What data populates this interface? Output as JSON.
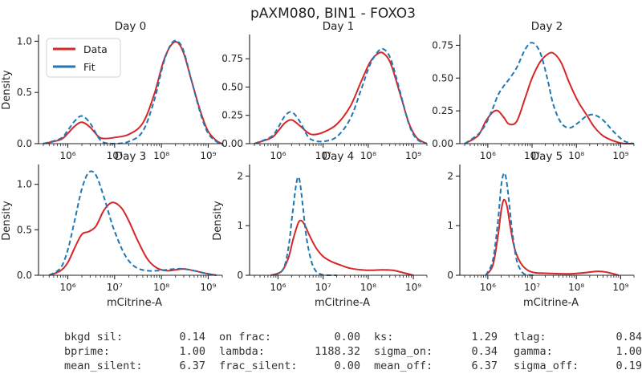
{
  "figure_title": "pAXM080, BIN1 - FOXO3",
  "colors": {
    "data": "#d62728",
    "fit": "#1f77b4"
  },
  "legend": [
    {
      "label": "Data",
      "color": "#d62728",
      "dash": false
    },
    {
      "label": "Fit",
      "color": "#1f77b4",
      "dash": true
    }
  ],
  "chart_data": [
    {
      "type": "line",
      "title": "Day 0",
      "ylabel": "Density",
      "xlabel": "",
      "xscale": "log",
      "xlim": [
        300000,
        2000000000
      ],
      "ylim": [
        0,
        1.05
      ],
      "yticks": [
        0.0,
        0.5,
        1.0
      ],
      "ytick_labels": [
        "0.0",
        "0.5",
        "1.0"
      ],
      "xticks": [
        1000000,
        10000000,
        100000000,
        1000000000
      ],
      "xtick_labels": [
        "10⁶",
        "10⁷",
        "10⁸",
        "10⁹"
      ],
      "legend_position": "upper-left",
      "series": [
        {
          "name": "Data",
          "dashed": false,
          "x": [
            300000,
            700000,
            1000000,
            1400000,
            2000000,
            3000000,
            4500000,
            6000000,
            10000000,
            20000000,
            40000000,
            70000000,
            110000000,
            160000000,
            220000000,
            300000000,
            450000000,
            700000000,
            1000000000,
            1500000000,
            2000000000
          ],
          "y": [
            0.0,
            0.04,
            0.1,
            0.17,
            0.21,
            0.16,
            0.07,
            0.05,
            0.06,
            0.09,
            0.2,
            0.48,
            0.8,
            0.96,
            0.99,
            0.88,
            0.6,
            0.3,
            0.12,
            0.03,
            0.0
          ]
        },
        {
          "name": "Fit",
          "dashed": true,
          "x": [
            300000,
            700000,
            1000000,
            1400000,
            2000000,
            3000000,
            4500000,
            6000000,
            10000000,
            20000000,
            40000000,
            70000000,
            110000000,
            160000000,
            220000000,
            300000000,
            450000000,
            700000000,
            1000000000,
            1500000000,
            2000000000
          ],
          "y": [
            0.0,
            0.05,
            0.13,
            0.22,
            0.27,
            0.2,
            0.06,
            0.01,
            0.0,
            0.02,
            0.12,
            0.42,
            0.78,
            0.97,
            1.0,
            0.9,
            0.6,
            0.28,
            0.1,
            0.02,
            0.0
          ]
        }
      ]
    },
    {
      "type": "line",
      "title": "Day 1",
      "ylabel": "",
      "xlabel": "",
      "xscale": "log",
      "xlim": [
        300000,
        2000000000
      ],
      "ylim": [
        0,
        0.95
      ],
      "yticks": [
        0.0,
        0.25,
        0.5,
        0.75
      ],
      "ytick_labels": [
        "0.00",
        "0.25",
        "0.50",
        "0.75"
      ],
      "xticks": [
        1000000,
        10000000,
        100000000,
        1000000000
      ],
      "xtick_labels": [
        "10⁶",
        "10⁷",
        "10⁸",
        "10⁹"
      ],
      "series": [
        {
          "name": "Data",
          "dashed": false,
          "x": [
            300000,
            700000,
            1000000,
            1400000,
            2000000,
            3000000,
            4500000,
            6000000,
            10000000,
            20000000,
            40000000,
            70000000,
            110000000,
            170000000,
            230000000,
            320000000,
            500000000,
            800000000,
            1200000000,
            2000000000
          ],
          "y": [
            0.0,
            0.05,
            0.11,
            0.18,
            0.21,
            0.16,
            0.1,
            0.08,
            0.1,
            0.17,
            0.33,
            0.55,
            0.72,
            0.8,
            0.79,
            0.7,
            0.45,
            0.18,
            0.05,
            0.0
          ]
        },
        {
          "name": "Fit",
          "dashed": true,
          "x": [
            300000,
            700000,
            1000000,
            1400000,
            2000000,
            3000000,
            4500000,
            6000000,
            10000000,
            20000000,
            40000000,
            70000000,
            110000000,
            170000000,
            230000000,
            320000000,
            500000000,
            800000000,
            1200000000,
            2000000000
          ],
          "y": [
            0.0,
            0.06,
            0.14,
            0.24,
            0.28,
            0.2,
            0.07,
            0.03,
            0.02,
            0.06,
            0.22,
            0.48,
            0.7,
            0.82,
            0.83,
            0.74,
            0.47,
            0.17,
            0.04,
            0.0
          ]
        }
      ]
    },
    {
      "type": "line",
      "title": "Day 2",
      "ylabel": "",
      "xlabel": "",
      "xscale": "log",
      "xlim": [
        300000,
        2000000000
      ],
      "ylim": [
        0,
        0.82
      ],
      "yticks": [
        0.0,
        0.25,
        0.5,
        0.75
      ],
      "ytick_labels": [
        "0.00",
        "0.25",
        "0.50",
        "0.75"
      ],
      "xticks": [
        1000000,
        10000000,
        100000000,
        1000000000
      ],
      "xtick_labels": [
        "10⁶",
        "10⁷",
        "10⁸",
        "10⁹"
      ],
      "series": [
        {
          "name": "Data",
          "dashed": false,
          "x": [
            300000,
            600000,
            900000,
            1300000,
            1700000,
            2300000,
            3000000,
            4500000,
            7000000,
            10000000,
            15000000,
            22000000,
            30000000,
            45000000,
            70000000,
            110000000,
            170000000,
            250000000,
            400000000,
            700000000,
            1200000000,
            2000000000
          ],
          "y": [
            0.0,
            0.06,
            0.17,
            0.24,
            0.25,
            0.2,
            0.15,
            0.17,
            0.35,
            0.5,
            0.62,
            0.68,
            0.69,
            0.62,
            0.46,
            0.32,
            0.22,
            0.13,
            0.06,
            0.02,
            0.0,
            0.0
          ]
        },
        {
          "name": "Fit",
          "dashed": true,
          "x": [
            300000,
            600000,
            900000,
            1300000,
            1700000,
            2300000,
            3000000,
            4500000,
            7000000,
            10000000,
            15000000,
            22000000,
            30000000,
            45000000,
            70000000,
            110000000,
            170000000,
            250000000,
            400000000,
            700000000,
            1200000000,
            2000000000
          ],
          "y": [
            0.0,
            0.07,
            0.15,
            0.27,
            0.37,
            0.44,
            0.49,
            0.58,
            0.72,
            0.77,
            0.7,
            0.5,
            0.3,
            0.16,
            0.12,
            0.16,
            0.21,
            0.22,
            0.18,
            0.09,
            0.02,
            0.0
          ]
        }
      ]
    },
    {
      "type": "line",
      "title": "Day 3",
      "ylabel": "Density",
      "xlabel": "mCitrine-A",
      "xscale": "log",
      "xlim": [
        300000,
        2000000000
      ],
      "ylim": [
        0,
        1.2
      ],
      "yticks": [
        0.0,
        0.5,
        1.0
      ],
      "ytick_labels": [
        "0.0",
        "0.5",
        "1.0"
      ],
      "xticks": [
        1000000,
        10000000,
        100000000,
        1000000000
      ],
      "xtick_labels": [
        "10⁶",
        "10⁷",
        "10⁸",
        "10⁹"
      ],
      "series": [
        {
          "name": "Data",
          "dashed": false,
          "x": [
            400000,
            700000,
            1000000,
            1400000,
            2000000,
            2800000,
            4000000,
            6000000,
            9000000,
            14000000,
            20000000,
            30000000,
            50000000,
            80000000,
            130000000,
            200000000,
            300000000,
            500000000,
            900000000,
            1500000000
          ],
          "y": [
            0.0,
            0.05,
            0.14,
            0.3,
            0.45,
            0.48,
            0.54,
            0.72,
            0.8,
            0.74,
            0.6,
            0.4,
            0.18,
            0.08,
            0.05,
            0.06,
            0.07,
            0.05,
            0.02,
            0.0
          ]
        },
        {
          "name": "Fit",
          "dashed": true,
          "x": [
            400000,
            700000,
            1000000,
            1400000,
            2000000,
            2800000,
            4000000,
            6000000,
            9000000,
            14000000,
            20000000,
            30000000,
            50000000,
            80000000,
            130000000,
            200000000,
            300000000,
            500000000,
            900000000,
            1500000000
          ],
          "y": [
            0.0,
            0.08,
            0.28,
            0.6,
            0.95,
            1.13,
            1.1,
            0.85,
            0.55,
            0.3,
            0.16,
            0.08,
            0.05,
            0.05,
            0.06,
            0.07,
            0.07,
            0.05,
            0.02,
            0.0
          ]
        }
      ]
    },
    {
      "type": "line",
      "title": "Day 4",
      "ylabel": "Density",
      "xlabel": "mCitrine-A",
      "xscale": "log",
      "xlim": [
        300000,
        2000000000
      ],
      "ylim": [
        0,
        2.2
      ],
      "yticks": [
        0,
        1,
        2
      ],
      "ytick_labels": [
        "0",
        "1",
        "2"
      ],
      "xticks": [
        1000000,
        10000000,
        100000000,
        1000000000
      ],
      "xtick_labels": [
        "10⁶",
        "10⁷",
        "10⁸",
        "10⁹"
      ],
      "series": [
        {
          "name": "Data",
          "dashed": false,
          "x": [
            700000,
            1200000,
            1700000,
            2200000,
            2800000,
            3300000,
            4000000,
            5000000,
            7000000,
            10000000,
            15000000,
            25000000,
            40000000,
            70000000,
            120000000,
            200000000,
            350000000,
            600000000,
            1000000000
          ],
          "y": [
            0.0,
            0.08,
            0.35,
            0.75,
            1.05,
            1.1,
            1.0,
            0.8,
            0.55,
            0.38,
            0.28,
            0.2,
            0.14,
            0.11,
            0.1,
            0.11,
            0.1,
            0.05,
            0.0
          ]
        },
        {
          "name": "Fit",
          "dashed": true,
          "x": [
            800000,
            1300000,
            1700000,
            2100000,
            2500000,
            2800000,
            3100000,
            3600000,
            4300000,
            5500000,
            7000000,
            9000000,
            12000000,
            20000000
          ],
          "y": [
            0.0,
            0.12,
            0.55,
            1.25,
            1.8,
            1.98,
            1.85,
            1.35,
            0.75,
            0.28,
            0.08,
            0.02,
            0.0,
            0.0
          ]
        }
      ]
    },
    {
      "type": "line",
      "title": "Day 5",
      "ylabel": "",
      "xlabel": "mCitrine-A",
      "xscale": "log",
      "xlim": [
        300000,
        2000000000
      ],
      "ylim": [
        0,
        2.2
      ],
      "yticks": [
        0,
        1,
        2
      ],
      "ytick_labels": [
        "0",
        "1",
        "2"
      ],
      "xticks": [
        1000000,
        10000000,
        100000000,
        1000000000
      ],
      "xtick_labels": [
        "10⁶",
        "10⁷",
        "10⁸",
        "10⁹"
      ],
      "series": [
        {
          "name": "Data",
          "dashed": false,
          "x": [
            900000,
            1300000,
            1700000,
            2000000,
            2300000,
            2700000,
            3200000,
            4000000,
            5500000,
            8000000,
            12000000,
            20000000,
            40000000,
            80000000,
            150000000,
            300000000,
            500000000,
            900000000
          ],
          "y": [
            0.0,
            0.2,
            0.8,
            1.3,
            1.52,
            1.4,
            1.0,
            0.55,
            0.25,
            0.1,
            0.05,
            0.04,
            0.03,
            0.03,
            0.05,
            0.08,
            0.06,
            0.0
          ]
        },
        {
          "name": "Fit",
          "dashed": true,
          "x": [
            900000,
            1300000,
            1700000,
            2000000,
            2300000,
            2600000,
            3000000,
            3600000,
            4500000,
            6000000,
            8000000,
            12000000
          ],
          "y": [
            0.0,
            0.3,
            1.1,
            1.8,
            2.05,
            1.95,
            1.5,
            0.85,
            0.3,
            0.06,
            0.01,
            0.0
          ]
        }
      ]
    }
  ],
  "stats": [
    [
      {
        "label": "bkgd sil:",
        "value": "0.14"
      },
      {
        "label": "on frac:",
        "value": "0.00"
      },
      {
        "label": "ks:",
        "value": "1.29"
      },
      {
        "label": "tlag:",
        "value": "0.84"
      }
    ],
    [
      {
        "label": "bprime:",
        "value": "1.00"
      },
      {
        "label": "lambda:",
        "value": "1188.32"
      },
      {
        "label": "sigma_on:",
        "value": "0.34"
      },
      {
        "label": "gamma:",
        "value": "1.00"
      }
    ],
    [
      {
        "label": "mean_silent:",
        "value": "6.37"
      },
      {
        "label": "frac_silent:",
        "value": "0.00"
      },
      {
        "label": "mean_off:",
        "value": "6.37"
      },
      {
        "label": "sigma_off:",
        "value": "0.19"
      }
    ]
  ]
}
